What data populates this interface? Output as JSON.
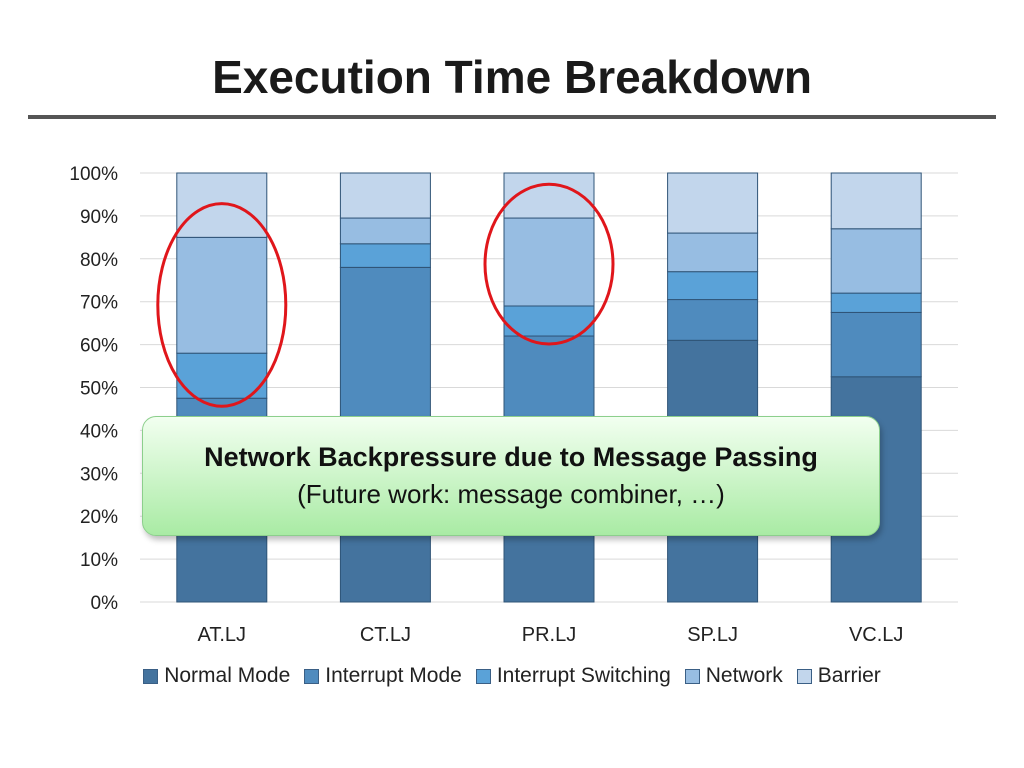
{
  "slide": {
    "title": "Execution Time Breakdown"
  },
  "callout": {
    "title": "Network Backpressure due to Message Passing",
    "subtitle": "(Future work: message combiner, …)"
  },
  "highlight_color": "#e0161b",
  "highlighted_categories": [
    "AT.LJ",
    "PR.LJ"
  ],
  "chart_data": {
    "type": "bar",
    "stacked": true,
    "percent": true,
    "categories": [
      "AT.LJ",
      "CT.LJ",
      "PR.LJ",
      "SP.LJ",
      "VC.LJ"
    ],
    "ylim": [
      0,
      100
    ],
    "yticks": [
      "0%",
      "10%",
      "20%",
      "30%",
      "40%",
      "50%",
      "60%",
      "70%",
      "80%",
      "90%",
      "100%"
    ],
    "grid": true,
    "legend": "bottom",
    "series": [
      {
        "name": "Normal Mode",
        "color": "#44739e",
        "values": [
          30,
          30,
          30,
          61,
          52.5
        ]
      },
      {
        "name": "Interrupt Mode",
        "color": "#4f8bbe",
        "values": [
          17.5,
          48,
          32,
          9.5,
          15
        ]
      },
      {
        "name": "Interrupt Switching",
        "color": "#5aa2d8",
        "values": [
          10.5,
          5.5,
          7,
          6.5,
          4.5
        ]
      },
      {
        "name": "Network",
        "color": "#97bde2",
        "values": [
          27,
          6,
          20.5,
          9,
          15
        ]
      },
      {
        "name": "Barrier",
        "color": "#c2d6ec",
        "values": [
          15,
          10.5,
          10.5,
          14,
          13
        ]
      }
    ]
  }
}
